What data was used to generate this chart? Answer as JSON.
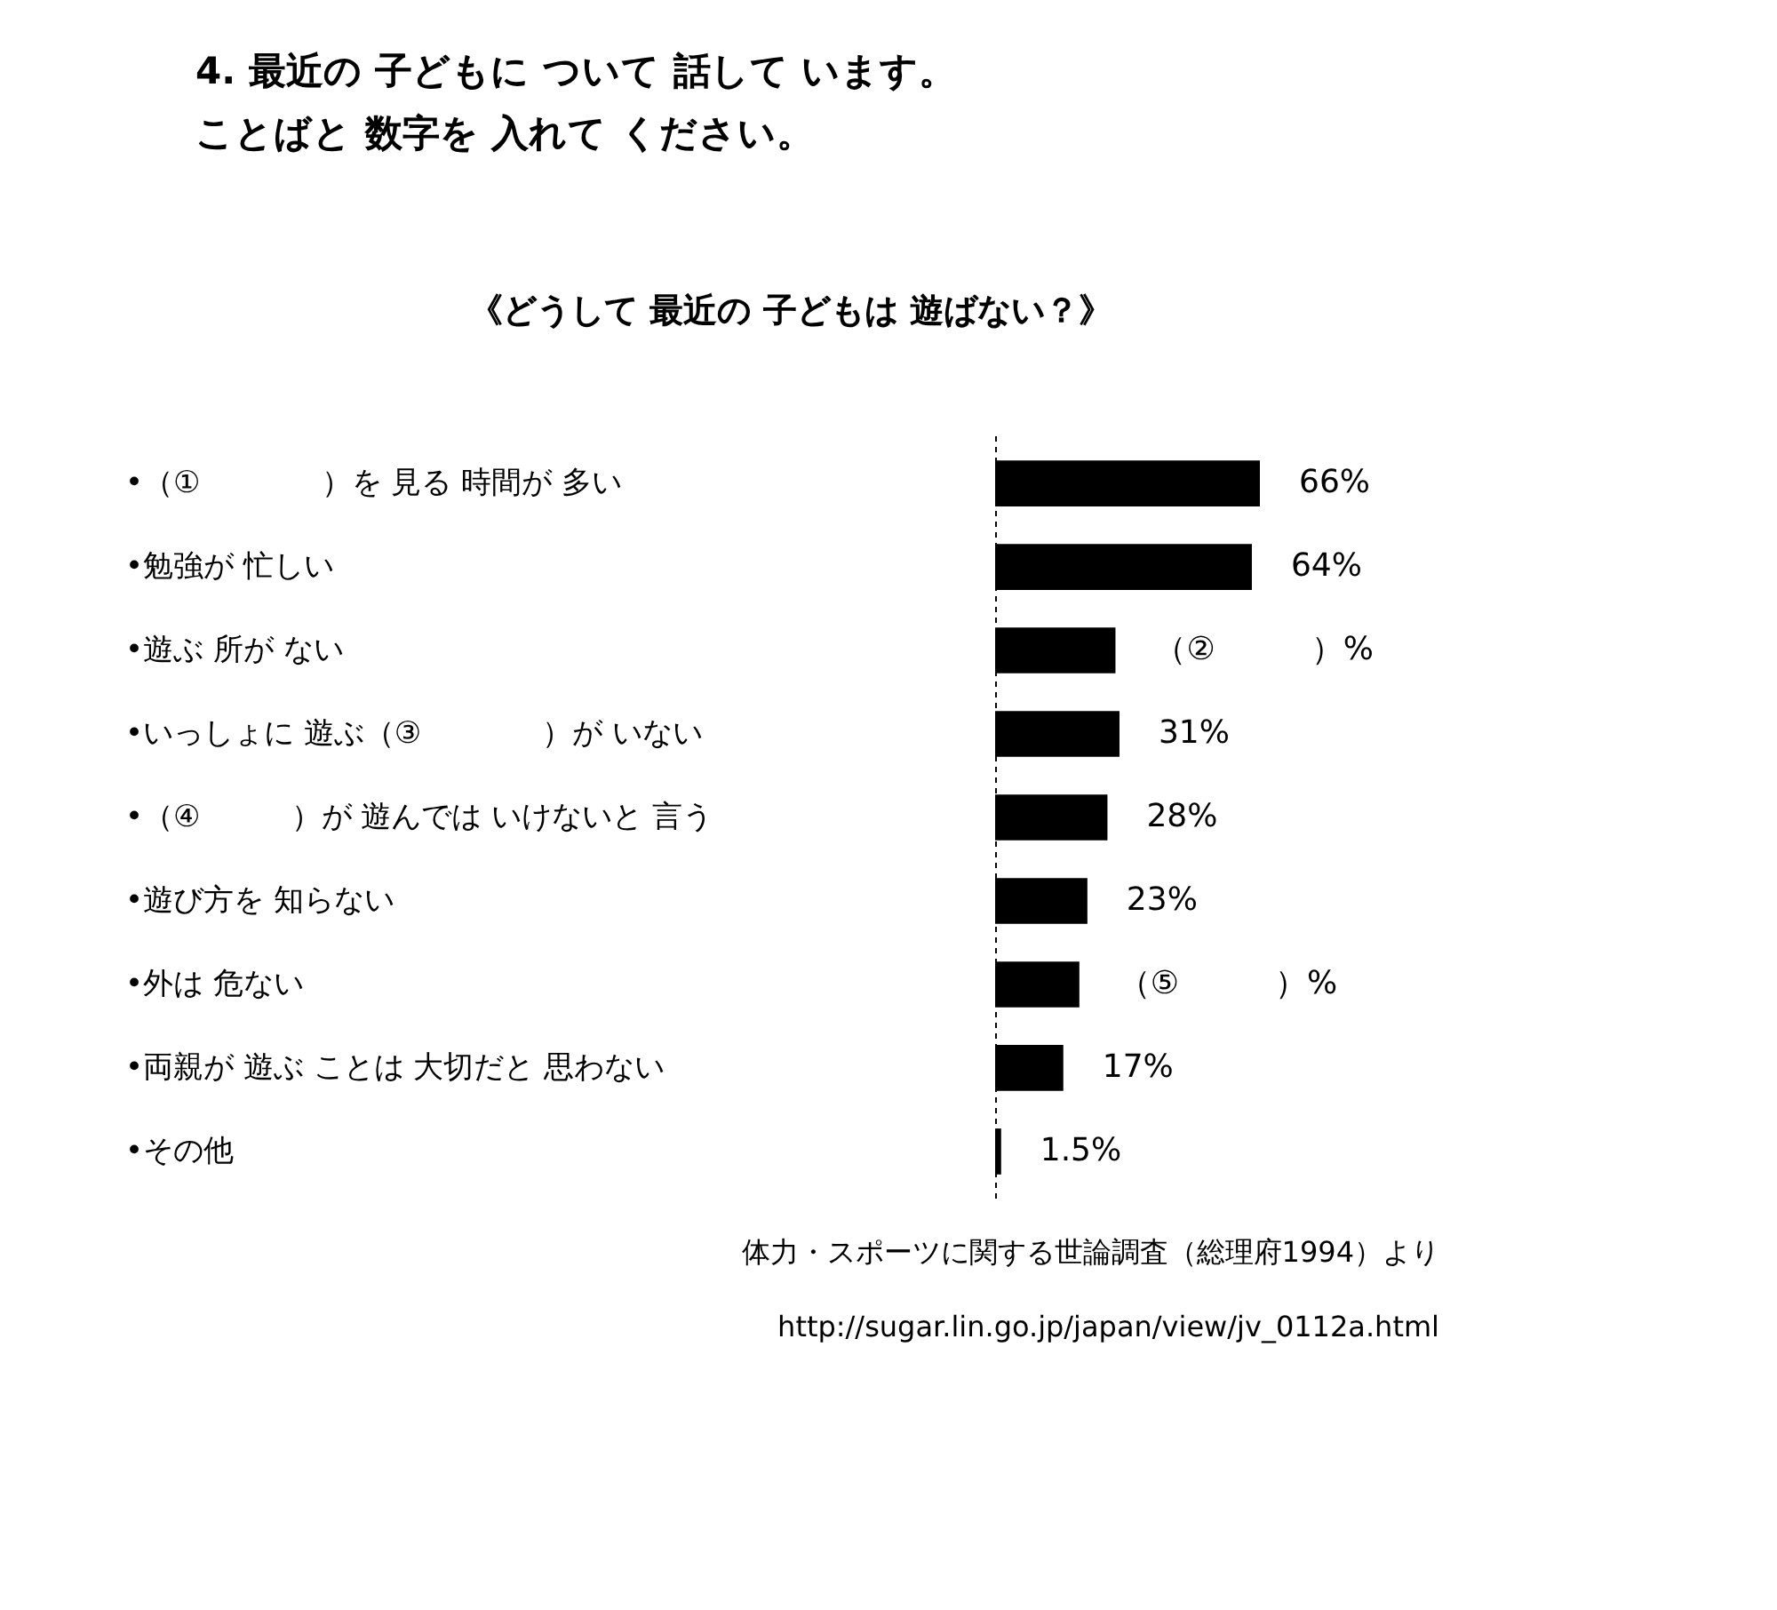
{
  "chart_data": {
    "type": "bar",
    "orientation": "horizontal",
    "title": "4. 最近の 子どもに ついて 話して います。",
    "subtitle": "ことばと 数字を 入れて ください。",
    "categories": [
      "•（①　　　　）を 見る 時間が 多い",
      "•勉強が 忙しい",
      "•遊ぶ 所が ない",
      "•いっしょに 遊ぶ（③　　　　）が いない",
      "•（④　　　）が 遊んでは いけないと 言う",
      "•遊び方を 知らない",
      "•外は 危ない",
      "•両親が 遊ぶ ことは 大切だと 思わない",
      "•その他"
    ],
    "values": [
      66,
      64,
      30,
      31,
      28,
      23,
      21,
      17,
      1.5
    ],
    "value_labels": [
      "66%",
      "64%",
      "（②　　　）%",
      "31%",
      "28%",
      "23%",
      "（⑤　　　）%",
      "17%",
      "1.5%"
    ],
    "color": "#000000",
    "annotations": [
      "《どうして 最近の 子どもは 遊ばない？》",
      "体力・スポーツに関する世論調査（総理府1994）より",
      "http://sugar.lin.go.jp/japan/view/jv_0112a.html"
    ]
  }
}
